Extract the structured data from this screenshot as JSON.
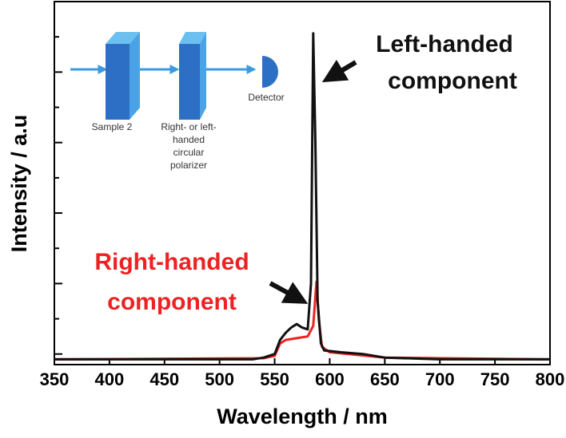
{
  "chart_data": {
    "type": "line",
    "xlabel": "Wavelength / nm",
    "ylabel": "Intensity / a.u",
    "xlim": [
      350,
      800
    ],
    "xticks": [
      350,
      400,
      450,
      500,
      550,
      600,
      650,
      700,
      750,
      800
    ],
    "ylim": [
      -0.3,
      10
    ],
    "yticks": [
      0,
      1,
      2,
      3,
      4,
      5,
      6,
      7,
      8,
      9,
      10
    ],
    "series": [
      {
        "name": "Left-handed component",
        "color": "#111111",
        "x": [
          350,
          530,
          540,
          550,
          555,
          560,
          565,
          570,
          575,
          580,
          583,
          585,
          587,
          589,
          592,
          595,
          610,
          630,
          650,
          700,
          800
        ],
        "values": [
          -0.15,
          -0.15,
          -0.1,
          0.0,
          0.4,
          0.6,
          0.75,
          0.85,
          0.75,
          0.7,
          2.0,
          9.1,
          6.0,
          1.5,
          0.3,
          0.1,
          0.05,
          0.0,
          -0.1,
          -0.15,
          -0.15
        ]
      },
      {
        "name": "Right-handed component",
        "color": "#ee2222",
        "x": [
          350,
          540,
          550,
          555,
          560,
          570,
          580,
          585,
          588,
          590,
          593,
          600,
          650,
          800
        ],
        "values": [
          -0.15,
          -0.12,
          -0.05,
          0.3,
          0.4,
          0.45,
          0.5,
          0.8,
          2.05,
          1.0,
          0.2,
          0.05,
          -0.1,
          -0.15
        ]
      }
    ],
    "inset": {
      "labels": [
        [
          "Sample 2"
        ],
        [
          "Right- or left-",
          "handed",
          "circular",
          "polarizer"
        ],
        [
          "Detector"
        ]
      ]
    }
  }
}
